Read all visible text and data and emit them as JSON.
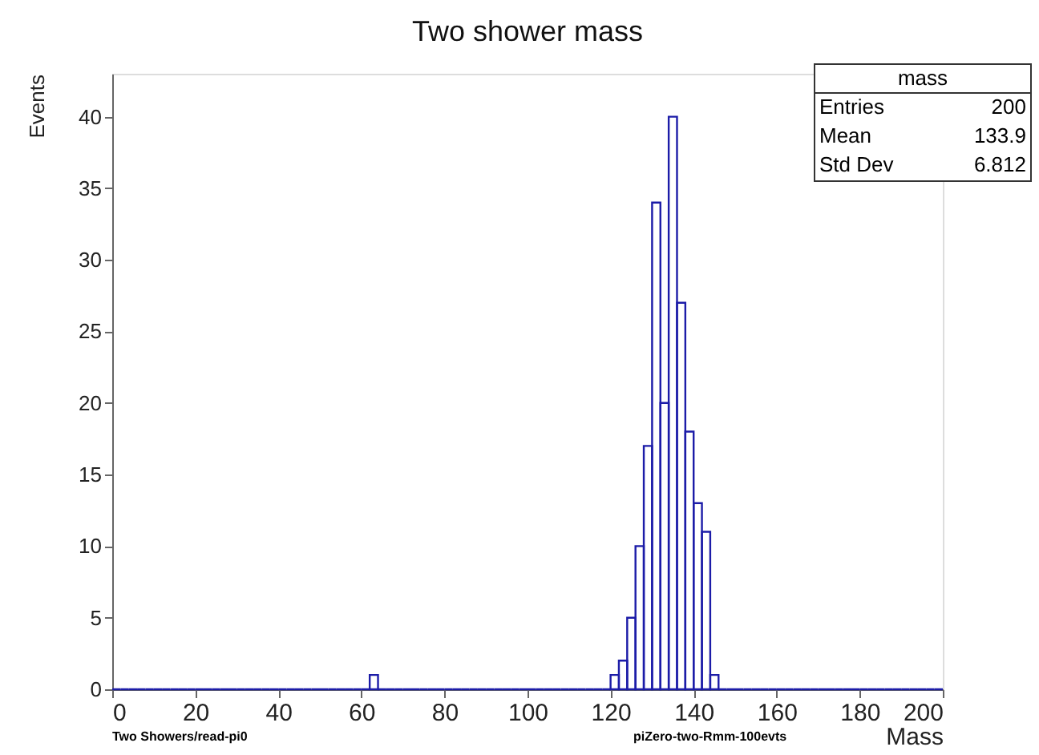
{
  "chart_data": {
    "type": "histogram",
    "title": "Two shower mass",
    "xlabel": "Mass",
    "ylabel": "Events",
    "bins": [
      0,
      2,
      4,
      6,
      8,
      10,
      12,
      14,
      16,
      18,
      20,
      22,
      24,
      26,
      28,
      30,
      32,
      34,
      36,
      38,
      40,
      42,
      44,
      46,
      48,
      50,
      52,
      54,
      56,
      58,
      60,
      62,
      64,
      66,
      68,
      70,
      72,
      74,
      76,
      78,
      80,
      82,
      84,
      86,
      88,
      90,
      92,
      94,
      96,
      98,
      100,
      102,
      104,
      106,
      108,
      110,
      112,
      114,
      116,
      118,
      120,
      122,
      124,
      126,
      128,
      130,
      132,
      134,
      136,
      138,
      140,
      142,
      144,
      146,
      148,
      150,
      152,
      154,
      156,
      158,
      160,
      162,
      164,
      166,
      168,
      170,
      172,
      174,
      176,
      178,
      180,
      182,
      184,
      186,
      188,
      190,
      192,
      194,
      196,
      198,
      200
    ],
    "values": [
      0,
      0,
      0,
      0,
      0,
      0,
      0,
      0,
      0,
      0,
      0,
      0,
      0,
      0,
      0,
      0,
      0,
      0,
      0,
      0,
      0,
      0,
      0,
      0,
      0,
      0,
      0,
      0,
      0,
      0,
      0,
      1,
      0,
      0,
      0,
      0,
      0,
      0,
      0,
      0,
      0,
      0,
      0,
      0,
      0,
      0,
      0,
      0,
      0,
      0,
      0,
      0,
      0,
      0,
      0,
      0,
      0,
      0,
      0,
      0,
      1,
      2,
      5,
      10,
      17,
      34,
      20,
      40,
      27,
      18,
      13,
      11,
      1,
      0,
      0,
      0,
      0,
      0,
      0,
      0,
      0,
      0,
      0,
      0,
      0,
      0,
      0,
      0,
      0,
      0,
      0,
      0,
      0,
      0,
      0,
      0,
      0,
      0,
      0,
      0
    ],
    "color": "#1c1ca8",
    "xlim": [
      0,
      200
    ],
    "xticks": [
      0,
      20,
      40,
      60,
      80,
      100,
      120,
      140,
      160,
      180,
      200
    ],
    "ylim": [
      0,
      43
    ],
    "yticks": [
      0,
      5,
      10,
      15,
      20,
      25,
      30,
      35,
      40
    ],
    "grid": false,
    "legend": false,
    "annotations": [
      "mass",
      "Entries",
      "200",
      "Mean",
      "133.9",
      "Std Dev",
      "6.812",
      "Two Showers/read-pi0",
      "piZero-two-Rmm-100evts"
    ]
  }
}
